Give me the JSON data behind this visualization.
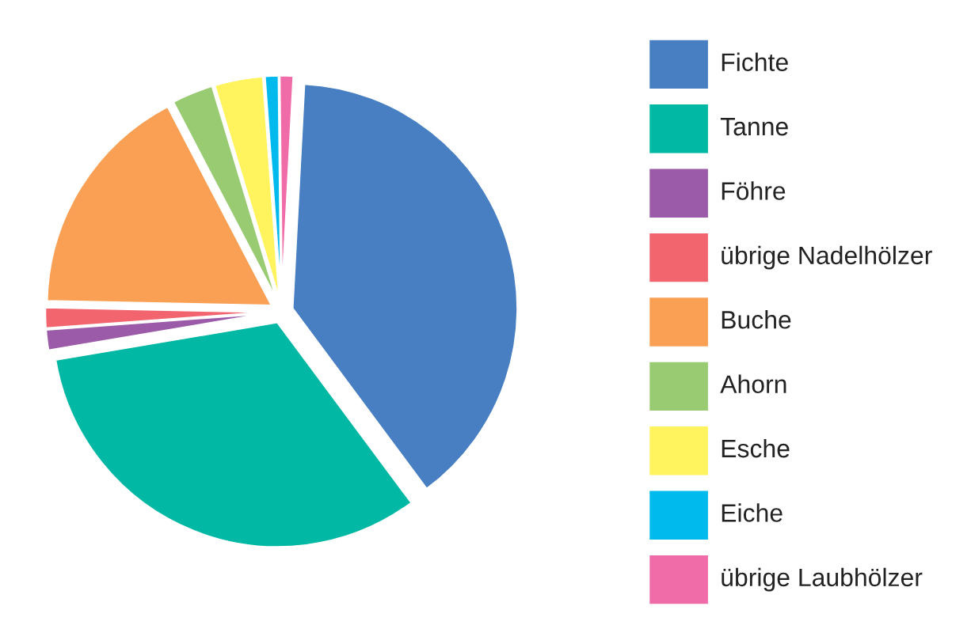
{
  "chart_data": {
    "type": "pie",
    "categories": [
      "Fichte",
      "Tanne",
      "Föhre",
      "übrige Nadelhölzer",
      "Buche",
      "Ahorn",
      "Esche",
      "Eiche",
      "übrige Laubhölzer"
    ],
    "values": [
      39,
      32.5,
      1.5,
      1.5,
      17,
      3,
      3.5,
      1,
      1
    ],
    "colors": [
      "#477fc2",
      "#00b8a3",
      "#9b5ba8",
      "#f2646e",
      "#f9a055",
      "#98cb72",
      "#fff35e",
      "#00baee",
      "#f06ca9"
    ],
    "legend": "right"
  }
}
